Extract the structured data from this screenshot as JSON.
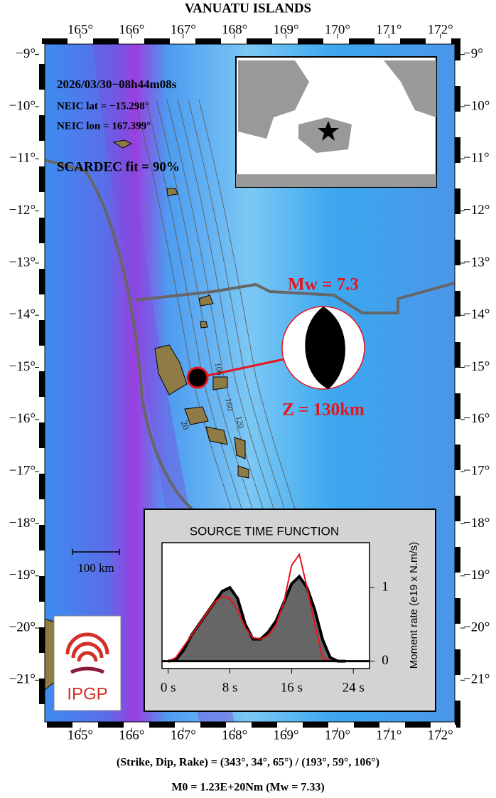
{
  "title": "VANUATU ISLANDS",
  "map": {
    "lonlim": [
      164.31,
      172.28
    ],
    "latlim": [
      -21.8,
      -8.8
    ],
    "lonticks": [
      {
        "value": 165,
        "label": "165°"
      },
      {
        "value": 166,
        "label": "166°"
      },
      {
        "value": 167,
        "label": "167°"
      },
      {
        "value": 168,
        "label": "168°"
      },
      {
        "value": 169,
        "label": "169°"
      },
      {
        "value": 170,
        "label": "170°"
      },
      {
        "value": 171,
        "label": "171°"
      },
      {
        "value": 172,
        "label": "172°"
      }
    ],
    "latticks": [
      {
        "value": -9,
        "label": "−9°"
      },
      {
        "value": -10,
        "label": "−10°"
      },
      {
        "value": -11,
        "label": "−11°"
      },
      {
        "value": -12,
        "label": "−12°"
      },
      {
        "value": -13,
        "label": "−13°"
      },
      {
        "value": -14,
        "label": "−14°"
      },
      {
        "value": -15,
        "label": "−15°"
      },
      {
        "value": -16,
        "label": "−16°"
      },
      {
        "value": -17,
        "label": "−17°"
      },
      {
        "value": -18,
        "label": "−18°"
      },
      {
        "value": -19,
        "label": "−19°"
      },
      {
        "value": -20,
        "label": "−20°"
      },
      {
        "value": -21,
        "label": "−21°"
      }
    ]
  },
  "event": {
    "origin": "2026/03/30−08h44m08s",
    "lat": "NEIC lat  = −15.298°",
    "lon": "NEIC lon = 167.399°",
    "fit": "SCARDEC fit = 90%",
    "magnitude": "Mw = 7.3",
    "depth": "Z = 130km"
  },
  "contour_labels": [
    "100",
    "160",
    "120",
    "20"
  ],
  "scale_bar": "100 km",
  "logo": "IPGP",
  "footer": {
    "mechanism": "(Strike, Dip, Rake) = (343°, 34°, 65°) / (193°, 59°, 106°)",
    "moment": "M0 = 1.23E+20Nm  (Mw = 7.33)"
  },
  "chart_data": {
    "type": "area",
    "title": "SOURCE TIME FUNCTION",
    "y_label": "Moment rate (e19 x N.m/s)",
    "x": [
      0,
      1,
      2,
      3,
      4,
      5,
      6,
      7,
      8,
      9,
      10,
      11,
      12,
      13,
      14,
      15,
      16,
      17,
      18,
      19,
      20,
      21,
      22,
      23
    ],
    "series": [
      {
        "color": "#000000",
        "fill": "#666666",
        "values": [
          0,
          0.02,
          0.15,
          0.35,
          0.5,
          0.65,
          0.8,
          0.95,
          1.0,
          0.85,
          0.5,
          0.3,
          0.3,
          0.4,
          0.55,
          0.8,
          1.05,
          1.15,
          1.0,
          0.7,
          0.3,
          0.05,
          0,
          0
        ]
      },
      {
        "color": "#e8141c",
        "values": [
          0,
          0.05,
          0.2,
          0.35,
          0.5,
          0.65,
          0.8,
          0.88,
          0.85,
          0.7,
          0.45,
          0.32,
          0.3,
          0.35,
          0.5,
          0.8,
          1.3,
          1.45,
          1.0,
          0.5,
          0.05,
          0,
          0,
          0
        ]
      }
    ],
    "xlim": [
      -0.8,
      26.1
    ],
    "ylim": [
      -0.1,
      1.61
    ],
    "xticks": [
      {
        "value": 0,
        "label": "0 s"
      },
      {
        "value": 8,
        "label": "8 s"
      },
      {
        "value": 16,
        "label": "16 s"
      },
      {
        "value": 24,
        "label": "24 s"
      }
    ],
    "yticks": [
      0,
      1
    ]
  }
}
